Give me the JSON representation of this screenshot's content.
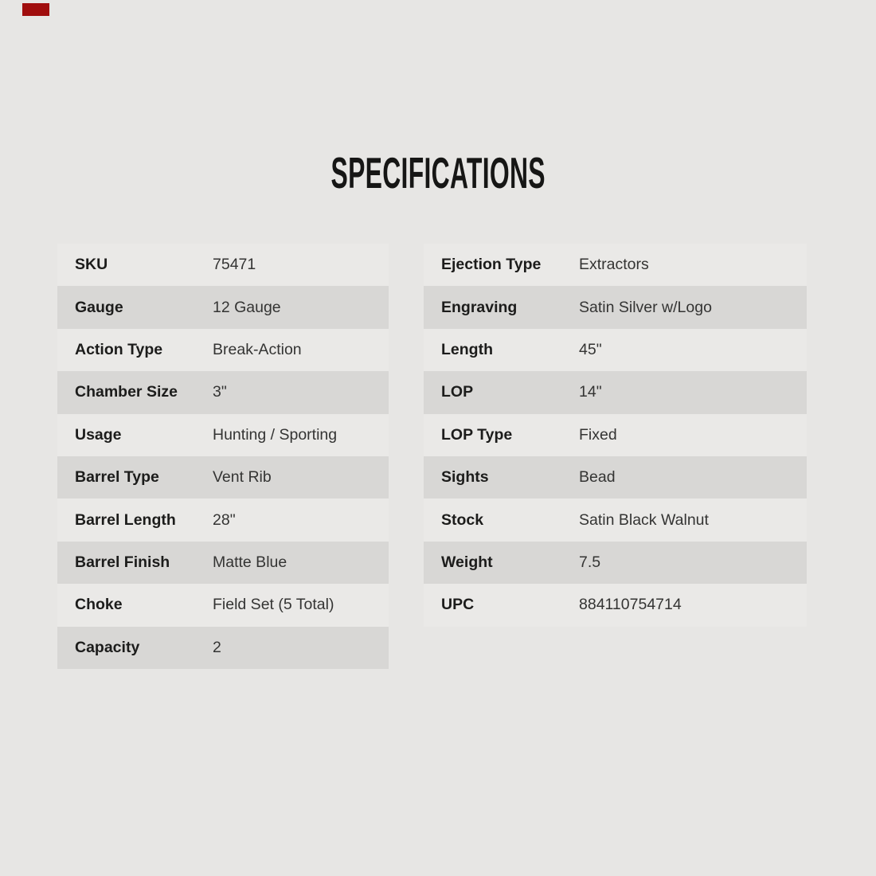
{
  "page": {
    "title": "SPECIFICATIONS"
  },
  "colors": {
    "background": "#e7e6e4",
    "row_plain": "#eae9e7",
    "row_stripe": "#d8d7d5",
    "marker_red": "#a00d0d",
    "label_text": "#1c1c1b",
    "value_text": "#343433"
  },
  "spec_table": {
    "left": [
      {
        "label": "SKU",
        "value": "75471"
      },
      {
        "label": "Gauge",
        "value": "12 Gauge"
      },
      {
        "label": "Action Type",
        "value": "Break-Action"
      },
      {
        "label": "Chamber Size",
        "value": "3\""
      },
      {
        "label": "Usage",
        "value": "Hunting / Sporting"
      },
      {
        "label": "Barrel Type",
        "value": "Vent Rib"
      },
      {
        "label": "Barrel Length",
        "value": "28\""
      },
      {
        "label": "Barrel Finish",
        "value": "Matte Blue"
      },
      {
        "label": "Choke",
        "value": "Field Set (5 Total)"
      },
      {
        "label": "Capacity",
        "value": "2"
      }
    ],
    "right": [
      {
        "label": "Ejection Type",
        "value": "Extractors"
      },
      {
        "label": "Engraving",
        "value": "Satin Silver w/Logo"
      },
      {
        "label": "Length",
        "value": "45\""
      },
      {
        "label": "LOP",
        "value": "14\""
      },
      {
        "label": "LOP Type",
        "value": "Fixed"
      },
      {
        "label": "Sights",
        "value": "Bead"
      },
      {
        "label": "Stock",
        "value": "Satin Black Walnut"
      },
      {
        "label": "Weight",
        "value": "7.5"
      },
      {
        "label": "UPC",
        "value": "884110754714"
      }
    ]
  }
}
